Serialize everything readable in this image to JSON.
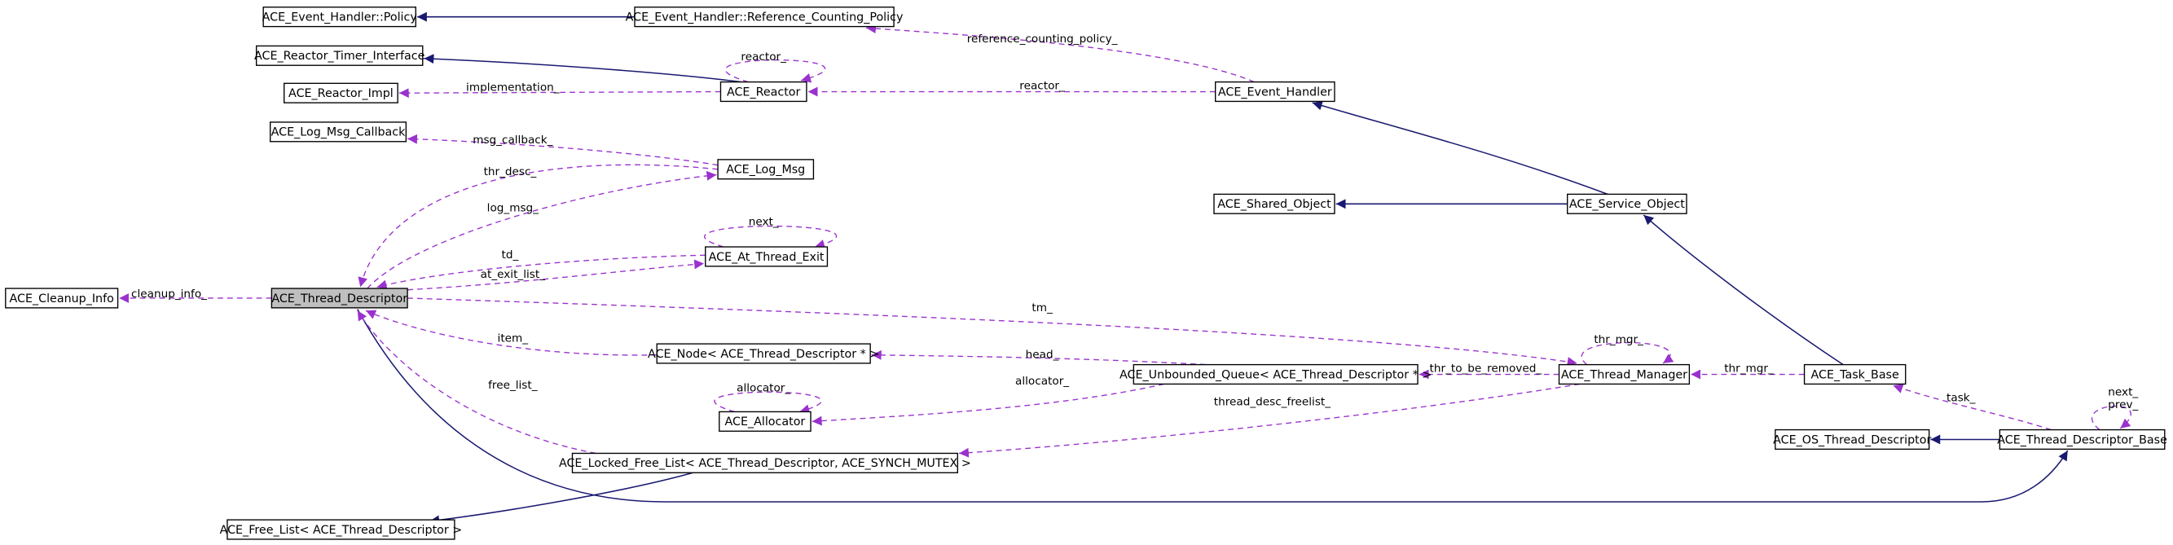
{
  "nodes": [
    {
      "label": "ACE_Event_Handler::Policy"
    },
    {
      "label": "ACE_Event_Handler::Reference_Counting_Policy"
    },
    {
      "label": "ACE_Reactor_Timer_Interface"
    },
    {
      "label": "ACE_Reactor_Impl"
    },
    {
      "label": "ACE_Reactor"
    },
    {
      "label": "ACE_Event_Handler"
    },
    {
      "label": "ACE_Log_Msg_Callback"
    },
    {
      "label": "ACE_Log_Msg"
    },
    {
      "label": "ACE_Shared_Object"
    },
    {
      "label": "ACE_Service_Object"
    },
    {
      "label": "ACE_At_Thread_Exit"
    },
    {
      "label": "ACE_Cleanup_Info"
    },
    {
      "label": "ACE_Thread_Descriptor"
    },
    {
      "label": "ACE_Node< ACE_Thread_Descriptor * >"
    },
    {
      "label": "ACE_Unbounded_Queue< ACE_Thread_Descriptor * >"
    },
    {
      "label": "ACE_Thread_Manager"
    },
    {
      "label": "ACE_Task_Base"
    },
    {
      "label": "ACE_Allocator"
    },
    {
      "label": "ACE_OS_Thread_Descriptor"
    },
    {
      "label": "ACE_Thread_Descriptor_Base"
    },
    {
      "label": "ACE_Locked_Free_List< ACE_Thread_Descriptor, ACE_SYNCH_MUTEX >"
    },
    {
      "label": "ACE_Free_List< ACE_Thread_Descriptor >"
    }
  ],
  "edges": [
    {
      "label": "reference_counting_policy_"
    },
    {
      "label": "reactor_"
    },
    {
      "label": "implementation_"
    },
    {
      "label": "reactor_"
    },
    {
      "label": "msg_callback_"
    },
    {
      "label": "thr_desc_"
    },
    {
      "label": "log_msg_"
    },
    {
      "label": "next_"
    },
    {
      "label": "td_"
    },
    {
      "label": "at_exit_list_"
    },
    {
      "label": "cleanup_info_"
    },
    {
      "label": "tm_"
    },
    {
      "label": "item_"
    },
    {
      "label": "head_"
    },
    {
      "label": "allocator_"
    },
    {
      "label": "allocator_"
    },
    {
      "label": "free_list_"
    },
    {
      "label": "thr_to_be_removed_"
    },
    {
      "label": "thr_mgr_"
    },
    {
      "label": "thread_desc_freelist_"
    },
    {
      "label": "thr_mgr_"
    },
    {
      "label": "task_"
    },
    {
      "label": "next_"
    },
    {
      "label": "prev_"
    }
  ]
}
